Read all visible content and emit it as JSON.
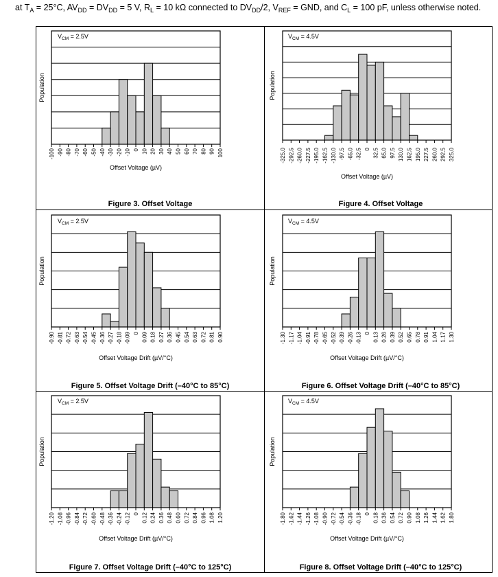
{
  "header": {
    "prefix": "at T",
    "ta_sub": "A",
    "ta_rest": " = 25°C, AV",
    "avdd_sub": "DD",
    "avdd_rest": " = DV",
    "dvdd_sub": "DD",
    "dvdd_rest": " = 5 V, R",
    "rl_sub": "L",
    "rl_rest": " = 10 kΩ connected to DV",
    "dvdd2_sub": "DD",
    "dvdd2_rest": "/2, V",
    "vref_sub": "REF",
    "vref_rest": " = GND, and C",
    "cl_sub": "L",
    "cl_rest": " = 100 pF, unless otherwise noted."
  },
  "chart_data": [
    {
      "type": "bar",
      "title": "Figure 3. Offset Voltage",
      "annotation": {
        "main": "V",
        "sub": "CM",
        "value": " = 2.5V"
      },
      "xlabel": "Offset Voltage (µV)",
      "ylabel": "Population",
      "ylim": [
        0,
        7
      ],
      "tick_labels": [
        "-100",
        "-90",
        "-80",
        "-70",
        "-60",
        "-50",
        "-40",
        "-30",
        "-20",
        "-10",
        "0",
        "10",
        "20",
        "30",
        "40",
        "50",
        "60",
        "70",
        "80",
        "90",
        "100"
      ],
      "bins": [
        [
          -40,
          -30,
          1
        ],
        [
          -30,
          -20,
          2
        ],
        [
          -20,
          -10,
          4
        ],
        [
          -10,
          0,
          3
        ],
        [
          0,
          10,
          2
        ],
        [
          10,
          20,
          5
        ],
        [
          20,
          30,
          3
        ],
        [
          30,
          40,
          1
        ]
      ]
    },
    {
      "type": "bar",
      "title": "Figure 4. Offset Voltage",
      "annotation": {
        "main": "V",
        "sub": "CM",
        "value": " = 4.5V"
      },
      "xlabel": "Offset Voltage (µV)",
      "ylabel": "Population",
      "ylim": [
        0,
        7
      ],
      "tick_labels": [
        "-325.0",
        "-292.5",
        "-260.0",
        "-227.5",
        "-195.0",
        "-162.5",
        "-130.0",
        "-97.5",
        "-65.0",
        "-32.5",
        "0",
        "32.5",
        "65.0",
        "97.5",
        "130.0",
        "162.5",
        "195.0",
        "227.5",
        "260.0",
        "292.5",
        "325.0"
      ],
      "bins": [
        [
          -162.5,
          -130,
          0.3
        ],
        [
          -130,
          -97.5,
          2.2
        ],
        [
          -97.5,
          -65,
          3.2
        ],
        [
          -65,
          -32.5,
          2.9
        ],
        [
          -32.5,
          0,
          5.5
        ],
        [
          0,
          32.5,
          4.8
        ],
        [
          32.5,
          65,
          5
        ],
        [
          65,
          97.5,
          2.2
        ],
        [
          97.5,
          130,
          1.5
        ],
        [
          130,
          162.5,
          3
        ],
        [
          162.5,
          195,
          0.3
        ]
      ]
    },
    {
      "type": "bar",
      "title": "Figure 5. Offset Voltage Drift (–40°C to 85°C)",
      "annotation": {
        "main": "V",
        "sub": "CM",
        "value": " = 2.5V"
      },
      "xlabel": "Offset Voltage Drift (µV/°C)",
      "ylabel": "Population",
      "ylim": [
        0,
        6
      ],
      "tick_labels": [
        "-0.90",
        "-0.81",
        "-0.72",
        "-0.63",
        "-0.54",
        "-0.45",
        "-0.36",
        "-0.27",
        "-0.18",
        "-0.09",
        "0",
        "0.09",
        "0.18",
        "0.27",
        "0.36",
        "0.45",
        "0.54",
        "0.63",
        "0.72",
        "0.81",
        "0.90"
      ],
      "bins": [
        [
          -0.36,
          -0.27,
          0.7
        ],
        [
          -0.27,
          -0.18,
          0.3
        ],
        [
          -0.18,
          -0.09,
          3.2
        ],
        [
          -0.09,
          0,
          5.1
        ],
        [
          0,
          0.09,
          4.5
        ],
        [
          0.09,
          0.18,
          4
        ],
        [
          0.18,
          0.27,
          2.1
        ],
        [
          0.27,
          0.36,
          1
        ]
      ]
    },
    {
      "type": "bar",
      "title": "Figure 6. Offset Voltage Drift (–40°C to 85°C)",
      "annotation": {
        "main": "V",
        "sub": "CM",
        "value": " = 4.5V"
      },
      "xlabel": "Offset Voltage Drift (µV/°C)",
      "ylabel": "Population",
      "ylim": [
        0,
        6
      ],
      "tick_labels": [
        "-1.30",
        "-1.17",
        "-1.04",
        "-0.91",
        "-0.78",
        "-0.65",
        "-0.52",
        "-0.39",
        "-0.26",
        "-0.13",
        "0",
        "0.13",
        "0.26",
        "0.39",
        "0.52",
        "0.65",
        "0.78",
        "0.91",
        "1.04",
        "1.17",
        "1.30"
      ],
      "bins": [
        [
          -0.39,
          -0.26,
          0.7
        ],
        [
          -0.26,
          -0.13,
          1.6
        ],
        [
          -0.13,
          0,
          3.7
        ],
        [
          0,
          0.13,
          3.7
        ],
        [
          0.13,
          0.26,
          5.1
        ],
        [
          0.26,
          0.39,
          1.8
        ],
        [
          0.39,
          0.52,
          1
        ]
      ]
    },
    {
      "type": "bar",
      "title": "Figure 7. Offset Voltage Drift (–40°C to 125°C)",
      "annotation": {
        "main": "V",
        "sub": "CM",
        "value": " = 2.5V"
      },
      "xlabel": "Offset Voltage Drift (µV/°C)",
      "ylabel": "Population",
      "ylim": [
        0,
        6
      ],
      "tick_labels": [
        "-1.20",
        "-1.08",
        "-0.96",
        "-0.84",
        "-0.72",
        "-0.60",
        "-0.48",
        "-0.36",
        "-0.24",
        "-0.12",
        "0",
        "0.12",
        "0.24",
        "0.36",
        "0.48",
        "0.60",
        "0.72",
        "0.84",
        "0.96",
        "1.08",
        "1.20"
      ],
      "bins": [
        [
          -0.36,
          -0.24,
          0.9
        ],
        [
          -0.24,
          -0.12,
          0.9
        ],
        [
          -0.12,
          0,
          2.9
        ],
        [
          0,
          0.12,
          3.4
        ],
        [
          0.12,
          0.24,
          5.1
        ],
        [
          0.24,
          0.36,
          2.6
        ],
        [
          0.36,
          0.48,
          1.1
        ],
        [
          0.48,
          0.6,
          0.9
        ]
      ]
    },
    {
      "type": "bar",
      "title": "Figure 8. Offset Voltage Drift (–40°C to 125°C)",
      "annotation": {
        "main": "V",
        "sub": "CM",
        "value": " = 4.5V"
      },
      "xlabel": "Offset Voltage Drift (µV/°C)",
      "ylabel": "Population",
      "ylim": [
        0,
        6
      ],
      "tick_labels": [
        "-1.80",
        "-1.62",
        "-1.44",
        "-1.26",
        "-1.08",
        "-0.90",
        "-0.72",
        "-0.54",
        "-0.36",
        "-0.18",
        "0",
        "0.18",
        "0.36",
        "0.54",
        "0.72",
        "0.90",
        "1.08",
        "1.26",
        "1.44",
        "1.62",
        "1.80"
      ],
      "bins": [
        [
          -0.36,
          -0.18,
          1.1
        ],
        [
          -0.18,
          0,
          2.9
        ],
        [
          0,
          0.18,
          4.3
        ],
        [
          0.18,
          0.36,
          5.3
        ],
        [
          0.36,
          0.54,
          4.1
        ],
        [
          0.54,
          0.72,
          1.9
        ],
        [
          0.72,
          0.9,
          0.9
        ]
      ]
    }
  ]
}
